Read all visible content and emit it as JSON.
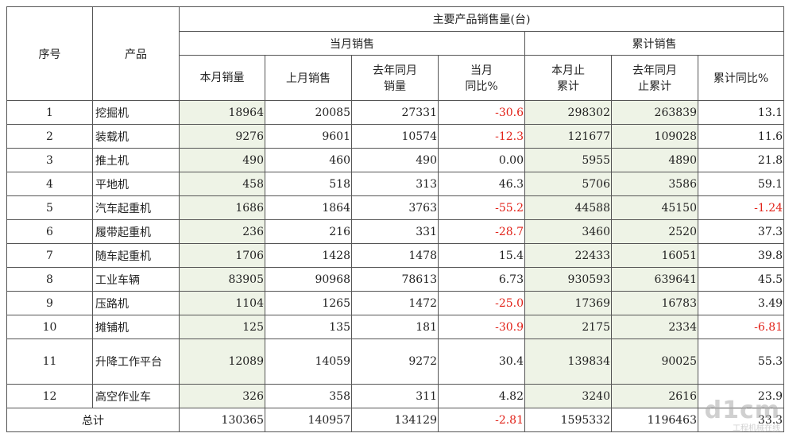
{
  "header": {
    "seq": "序号",
    "product": "产品",
    "group_title": "主要产品销售量(台)",
    "month_group": "当月销售",
    "cumul_group": "累计销售",
    "cols": {
      "this_month": "本月销量",
      "last_month": "上月销售",
      "ly_month_1": "去年同月",
      "ly_month_2": "销量",
      "month_yoy_1": "当月",
      "month_yoy_2": "同比%",
      "ytd_1": "本月止",
      "ytd_2": "累计",
      "ly_ytd_1": "去年同月",
      "ly_ytd_2": "止累计",
      "ytd_yoy": "累计同比%"
    }
  },
  "rows": [
    {
      "no": "1",
      "name": "挖掘机",
      "this_month": "18964",
      "last_month": "20085",
      "ly_month": "27331",
      "month_yoy": "-30.6",
      "ytd": "298302",
      "ly_ytd": "263839",
      "ytd_yoy": "13.1"
    },
    {
      "no": "2",
      "name": "装载机",
      "this_month": "9276",
      "last_month": "9601",
      "ly_month": "10574",
      "month_yoy": "-12.3",
      "ytd": "121677",
      "ly_ytd": "109028",
      "ytd_yoy": "11.6"
    },
    {
      "no": "3",
      "name": "推土机",
      "this_month": "490",
      "last_month": "460",
      "ly_month": "490",
      "month_yoy": "0.00",
      "ytd": "5955",
      "ly_ytd": "4890",
      "ytd_yoy": "21.8"
    },
    {
      "no": "4",
      "name": "平地机",
      "this_month": "458",
      "last_month": "518",
      "ly_month": "313",
      "month_yoy": "46.3",
      "ytd": "5706",
      "ly_ytd": "3586",
      "ytd_yoy": "59.1"
    },
    {
      "no": "5",
      "name": "汽车起重机",
      "this_month": "1686",
      "last_month": "1864",
      "ly_month": "3763",
      "month_yoy": "-55.2",
      "ytd": "44588",
      "ly_ytd": "45150",
      "ytd_yoy": "-1.24"
    },
    {
      "no": "6",
      "name": "履带起重机",
      "this_month": "236",
      "last_month": "216",
      "ly_month": "331",
      "month_yoy": "-28.7",
      "ytd": "3460",
      "ly_ytd": "2520",
      "ytd_yoy": "37.3"
    },
    {
      "no": "7",
      "name": "随车起重机",
      "this_month": "1706",
      "last_month": "1428",
      "ly_month": "1478",
      "month_yoy": "15.4",
      "ytd": "22433",
      "ly_ytd": "16051",
      "ytd_yoy": "39.8"
    },
    {
      "no": "8",
      "name": "工业车辆",
      "this_month": "83905",
      "last_month": "90968",
      "ly_month": "78613",
      "month_yoy": "6.73",
      "ytd": "930593",
      "ly_ytd": "639641",
      "ytd_yoy": "45.5"
    },
    {
      "no": "9",
      "name": "压路机",
      "this_month": "1104",
      "last_month": "1265",
      "ly_month": "1472",
      "month_yoy": "-25.0",
      "ytd": "17369",
      "ly_ytd": "16783",
      "ytd_yoy": "3.49"
    },
    {
      "no": "10",
      "name": "摊铺机",
      "this_month": "125",
      "last_month": "135",
      "ly_month": "181",
      "month_yoy": "-30.9",
      "ytd": "2175",
      "ly_ytd": "2334",
      "ytd_yoy": "-6.81"
    },
    {
      "no": "11",
      "name": "升降工作平台",
      "this_month": "12089",
      "last_month": "14059",
      "ly_month": "9272",
      "month_yoy": "30.4",
      "ytd": "139834",
      "ly_ytd": "90025",
      "ytd_yoy": "55.3"
    },
    {
      "no": "12",
      "name": "高空作业车",
      "this_month": "326",
      "last_month": "358",
      "ly_month": "311",
      "month_yoy": "4.82",
      "ytd": "3240",
      "ly_ytd": "2616",
      "ytd_yoy": "23.9"
    }
  ],
  "total": {
    "label": "总计",
    "this_month": "130365",
    "last_month": "140957",
    "ly_month": "134129",
    "month_yoy": "-2.81",
    "ytd": "1595332",
    "ly_ytd": "1196463",
    "ytd_yoy": "33.3"
  },
  "watermark": {
    "main": "d1cm",
    "sub": "工程机械在线"
  },
  "colors": {
    "negative": "#e2231a",
    "highlight_bg": "#eef3e6",
    "border": "#555555"
  }
}
